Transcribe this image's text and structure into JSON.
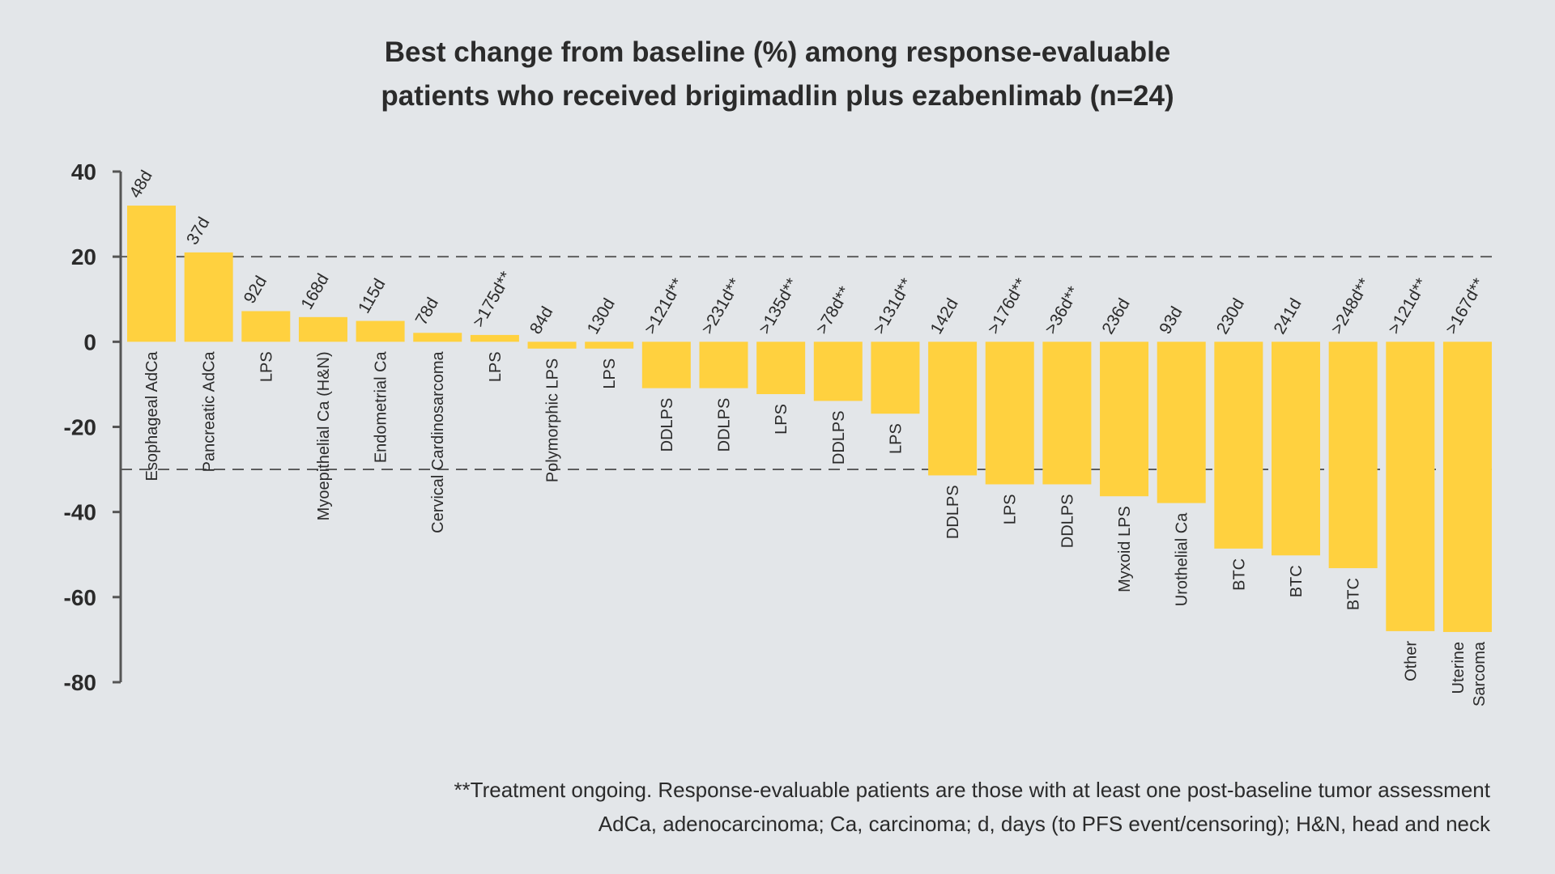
{
  "chart_data": {
    "type": "bar",
    "title_lines": [
      "Best change from baseline (%) among response-evaluable",
      "patients who received brigimadlin plus ezabenlimab (n=24)"
    ],
    "xlabel": "",
    "ylabel": "",
    "ylim": [
      -80,
      40
    ],
    "yticks": [
      40,
      20,
      0,
      -20,
      -40,
      -60,
      -80
    ],
    "reference_lines": [
      20,
      -30
    ],
    "grid": false,
    "bar_color": "#ffd13f",
    "categories": [
      "Esophageal AdCa",
      "Pancreatic AdCa",
      "LPS",
      "Myoepithelial Ca (H&N)",
      "Endometrial Ca",
      "Cervical Cardinosarcoma",
      "LPS",
      "Polymorphic LPS",
      "LPS",
      "DDLPS",
      "DDLPS",
      "LPS",
      "DDLPS",
      "LPS",
      "DDLPS",
      "LPS",
      "DDLPS",
      "Myxoid LPS",
      "Urothelial Ca",
      "BTC",
      "BTC",
      "BTC",
      "Other",
      "Uterine\nSarcoma"
    ],
    "values": [
      32,
      21,
      7.2,
      5.8,
      4.9,
      2.1,
      1.6,
      -1.6,
      -1.6,
      -10.9,
      -10.9,
      -12.3,
      -13.9,
      -16.9,
      -31.4,
      -33.5,
      -33.5,
      -36.3,
      -37.9,
      -48.6,
      -50.2,
      -53.2,
      -68.0,
      -68.2
    ],
    "bar_labels": [
      "48d",
      "37d",
      "92d",
      "168d",
      "115d",
      "78d",
      ">175d**",
      "84d",
      "130d",
      ">121d**",
      ">231d**",
      ">135d**",
      ">78d**",
      ">131d**",
      "142d",
      ">176d**",
      ">36d**",
      "236d",
      "93d",
      "230d",
      "241d",
      ">248d**",
      ">121d**",
      ">167d**"
    ]
  },
  "footnotes": [
    "**Treatment ongoing. Response-evaluable patients are those with at least one post-baseline tumor assessment",
    "AdCa, adenocarcinoma; Ca, carcinoma; d, days (to PFS event/censoring); H&N, head and neck"
  ]
}
